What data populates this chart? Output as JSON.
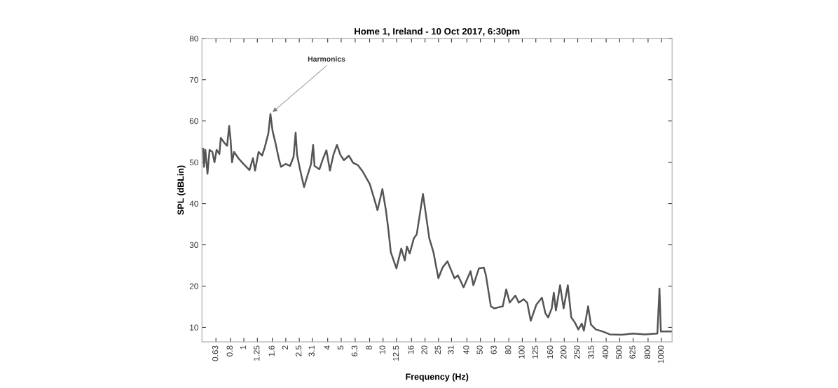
{
  "chart_data": {
    "type": "line",
    "title": "Home 1, Ireland - 10 Oct 2017, 6:30pm",
    "xlabel": "Frequency (Hz)",
    "ylabel": "SPL (dBLin)",
    "log": "x",
    "grid": false,
    "marker": "none",
    "line_style": "solid",
    "xlim": [
      0.5,
      1190
    ],
    "ylim": [
      6.5,
      80
    ],
    "xticks": [
      0.63,
      0.8,
      1,
      1.25,
      1.6,
      2,
      2.5,
      3.1,
      4,
      5,
      6.3,
      8,
      10,
      12.5,
      16,
      20,
      25,
      31,
      40,
      50,
      63,
      80,
      100,
      125,
      160,
      200,
      250,
      315,
      400,
      500,
      625,
      800,
      1000
    ],
    "yticks": [
      10,
      20,
      30,
      40,
      50,
      60,
      70,
      80
    ],
    "annotations": [
      {
        "text": "Harmonics",
        "x": 1.552,
        "y": 61.7
      }
    ],
    "series": [
      {
        "color": "#555555",
        "x": [
          0.511,
          0.517,
          0.529,
          0.548,
          0.567,
          0.594,
          0.615,
          0.637,
          0.667,
          0.683,
          0.732,
          0.758,
          0.784,
          0.803,
          0.822,
          0.85,
          0.922,
          1.0,
          1.097,
          1.162,
          1.203,
          1.275,
          1.351,
          1.415,
          1.499,
          1.552,
          1.607,
          1.683,
          1.784,
          1.846,
          2.002,
          2.146,
          2.274,
          2.354,
          2.409,
          2.553,
          2.705,
          2.834,
          3.037,
          3.144,
          3.218,
          3.489,
          3.697,
          3.917,
          4.151,
          4.398,
          4.66,
          4.937,
          5.232,
          5.674,
          6.081,
          6.594,
          7.15,
          8.027,
          8.604,
          9.117,
          9.886,
          10.47,
          10.84,
          11.36,
          12.46,
          13.51,
          14.31,
          14.83,
          15.53,
          16.64,
          17.43,
          19.34,
          21.46,
          23.0,
          24.95,
          26.74,
          29.0,
          32.55,
          34.49,
          37.84,
          42.47,
          44.48,
          48.8,
          52.9,
          54.78,
          59.4,
          62.95,
          72.32,
          76.63,
          81.21,
          89.06,
          94.38,
          102.3,
          108.4,
          114.9,
          126.1,
          138.3,
          146.5,
          153.4,
          162.6,
          168.3,
          174.2,
          186.8,
          198.0,
          212.2,
          224.8,
          238.2,
          252.5,
          267.4,
          276.8,
          296.8,
          310.9,
          337.1,
          378.4,
          424.8,
          517.1,
          622.3,
          757.5,
          933.0,
          965.9,
          988.5,
          1176
        ],
        "values": [
          53.3,
          48.9,
          53,
          47.2,
          53,
          52.5,
          50,
          53,
          52,
          55.9,
          54.5,
          54,
          58.8,
          55.4,
          50,
          52.5,
          50.8,
          49.5,
          48.1,
          51,
          48,
          52.5,
          51.6,
          53.7,
          57,
          61.7,
          57.6,
          54.8,
          50.8,
          48.9,
          49.6,
          49.1,
          51.3,
          57.2,
          51.8,
          47.7,
          44,
          46.3,
          49.6,
          54.2,
          49.1,
          48.3,
          50.8,
          52.9,
          48,
          51.8,
          54.2,
          51.8,
          50.5,
          51.6,
          49.9,
          49.3,
          47.7,
          44.7,
          41.3,
          38.4,
          43.5,
          38.4,
          34.5,
          28.2,
          24.3,
          29.1,
          26.2,
          29.6,
          27.9,
          31.6,
          32.5,
          42.3,
          31.6,
          28.2,
          21.9,
          24.5,
          26,
          21.9,
          22.6,
          19.7,
          23.6,
          20.2,
          24.3,
          24.5,
          22.6,
          15.1,
          14.6,
          15.1,
          19.2,
          16,
          17.7,
          16,
          16.8,
          16,
          11.6,
          15.5,
          17.2,
          13.4,
          12.4,
          14.6,
          18.4,
          14.1,
          20.2,
          14.6,
          20.2,
          12.4,
          11.2,
          9.5,
          10.9,
          9.2,
          15.1,
          10.7,
          9.5,
          9,
          8.3,
          8.2,
          8.5,
          8.3,
          8.5,
          19.4,
          9,
          9
        ]
      }
    ]
  }
}
